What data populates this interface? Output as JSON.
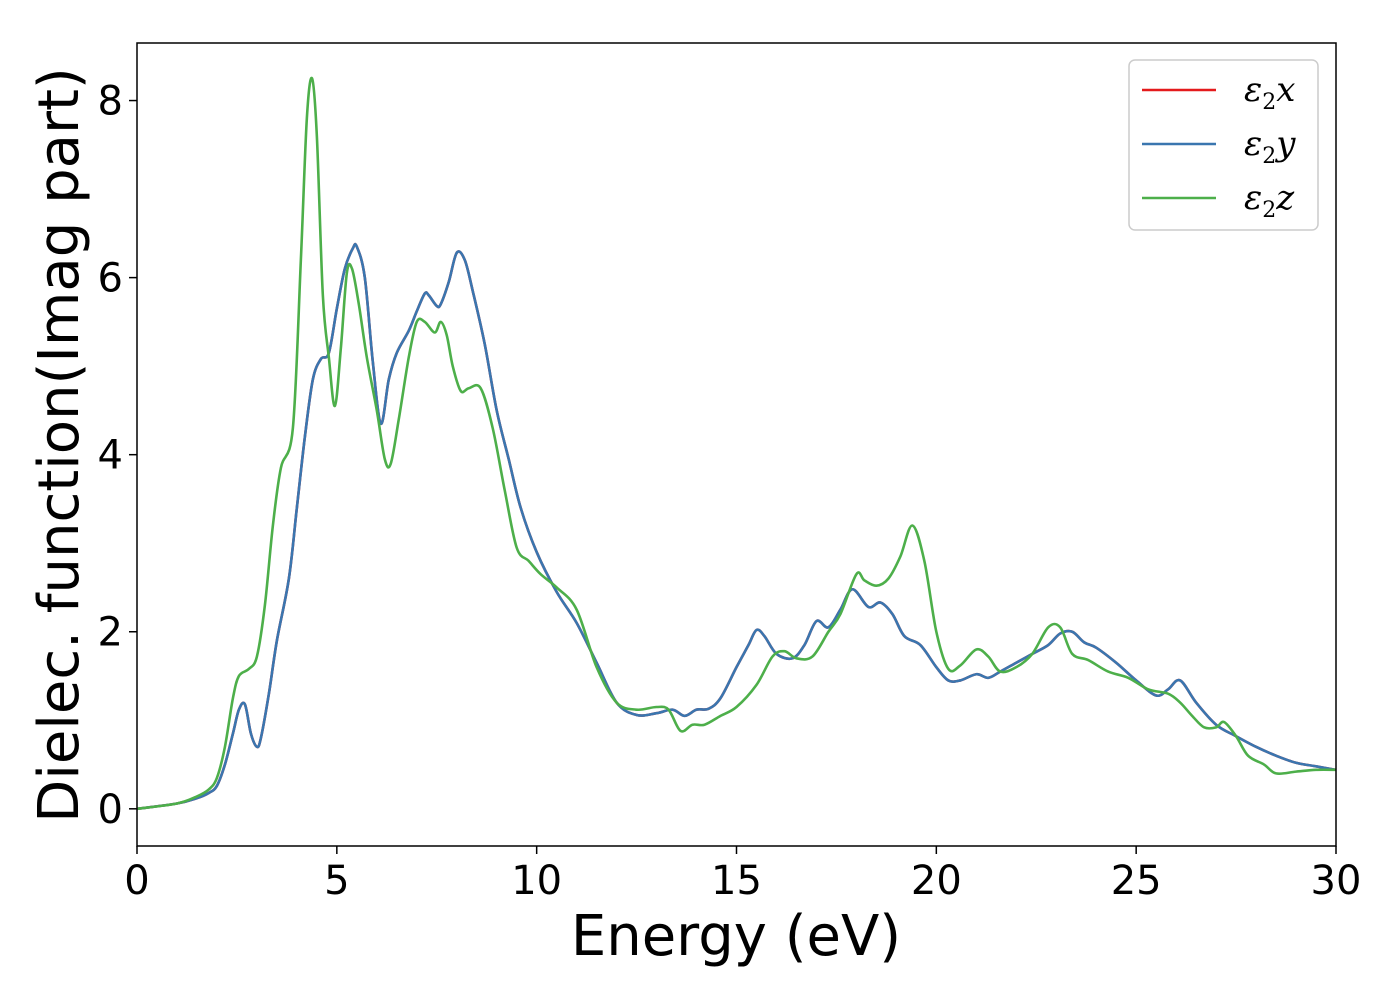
{
  "chart_data": {
    "type": "line",
    "xlabel": "Energy (eV)",
    "ylabel": "Dielec. function(Imag part)",
    "xlim": [
      0,
      30
    ],
    "ylim": [
      -0.42,
      8.65
    ],
    "xticks": [
      0,
      5,
      10,
      15,
      20,
      25,
      30
    ],
    "yticks": [
      0,
      2,
      4,
      6,
      8
    ],
    "grid": false,
    "legend_position": "top-right",
    "series": [
      {
        "name": "ε2x",
        "legend_base": "ε",
        "legend_sub": "2",
        "legend_var": "x",
        "color": "#e41a1c",
        "x": [
          0,
          1.0,
          1.5,
          1.8,
          2.0,
          2.2,
          2.4,
          2.55,
          2.7,
          2.85,
          3.0,
          3.1,
          3.3,
          3.5,
          3.8,
          4.0,
          4.2,
          4.4,
          4.6,
          4.8,
          5.0,
          5.2,
          5.4,
          5.5,
          5.7,
          5.9,
          6.1,
          6.3,
          6.5,
          6.8,
          7.0,
          7.2,
          7.3,
          7.5,
          7.6,
          7.8,
          8.0,
          8.2,
          8.4,
          8.7,
          9.0,
          9.3,
          9.6,
          10.0,
          10.5,
          11.0,
          11.5,
          12.0,
          12.5,
          13.0,
          13.4,
          13.7,
          14.0,
          14.3,
          14.6,
          15.0,
          15.3,
          15.5,
          15.7,
          16.0,
          16.4,
          16.7,
          17.0,
          17.3,
          17.6,
          17.9,
          18.3,
          18.6,
          18.9,
          19.2,
          19.6,
          20.0,
          20.3,
          20.6,
          21.0,
          21.3,
          21.6,
          22.0,
          22.4,
          22.8,
          23.1,
          23.4,
          23.7,
          24.0,
          24.5,
          25.0,
          25.5,
          25.8,
          26.1,
          26.5,
          27.0,
          27.5,
          28.0,
          28.5,
          29.0,
          29.5,
          30.0
        ],
        "y": [
          0,
          0.06,
          0.12,
          0.18,
          0.26,
          0.5,
          0.85,
          1.12,
          1.18,
          0.85,
          0.7,
          0.8,
          1.3,
          1.9,
          2.6,
          3.4,
          4.2,
          4.85,
          5.08,
          5.15,
          5.65,
          6.1,
          6.33,
          6.35,
          6.0,
          5.05,
          4.35,
          4.85,
          5.15,
          5.4,
          5.62,
          5.82,
          5.8,
          5.68,
          5.7,
          5.95,
          6.28,
          6.2,
          5.85,
          5.25,
          4.5,
          3.95,
          3.4,
          2.9,
          2.45,
          2.1,
          1.65,
          1.2,
          1.06,
          1.08,
          1.12,
          1.05,
          1.12,
          1.13,
          1.25,
          1.6,
          1.85,
          2.02,
          1.95,
          1.75,
          1.7,
          1.85,
          2.12,
          2.05,
          2.25,
          2.48,
          2.28,
          2.33,
          2.2,
          1.95,
          1.85,
          1.6,
          1.45,
          1.45,
          1.52,
          1.48,
          1.55,
          1.65,
          1.75,
          1.85,
          1.98,
          2.0,
          1.88,
          1.82,
          1.65,
          1.45,
          1.28,
          1.35,
          1.45,
          1.2,
          0.95,
          0.82,
          0.7,
          0.6,
          0.52,
          0.48,
          0.44
        ]
      },
      {
        "name": "ε2y",
        "legend_base": "ε",
        "legend_sub": "2",
        "legend_var": "y",
        "color": "#3a76af",
        "x": [
          0,
          1.0,
          1.5,
          1.8,
          2.0,
          2.2,
          2.4,
          2.55,
          2.7,
          2.85,
          3.0,
          3.1,
          3.3,
          3.5,
          3.8,
          4.0,
          4.2,
          4.4,
          4.6,
          4.8,
          5.0,
          5.2,
          5.4,
          5.5,
          5.7,
          5.9,
          6.1,
          6.3,
          6.5,
          6.8,
          7.0,
          7.2,
          7.3,
          7.5,
          7.6,
          7.8,
          8.0,
          8.2,
          8.4,
          8.7,
          9.0,
          9.3,
          9.6,
          10.0,
          10.5,
          11.0,
          11.5,
          12.0,
          12.5,
          13.0,
          13.4,
          13.7,
          14.0,
          14.3,
          14.6,
          15.0,
          15.3,
          15.5,
          15.7,
          16.0,
          16.4,
          16.7,
          17.0,
          17.3,
          17.6,
          17.9,
          18.3,
          18.6,
          18.9,
          19.2,
          19.6,
          20.0,
          20.3,
          20.6,
          21.0,
          21.3,
          21.6,
          22.0,
          22.4,
          22.8,
          23.1,
          23.4,
          23.7,
          24.0,
          24.5,
          25.0,
          25.5,
          25.8,
          26.1,
          26.5,
          27.0,
          27.5,
          28.0,
          28.5,
          29.0,
          29.5,
          30.0
        ],
        "y": [
          0,
          0.06,
          0.12,
          0.18,
          0.26,
          0.5,
          0.85,
          1.12,
          1.18,
          0.85,
          0.7,
          0.8,
          1.3,
          1.9,
          2.6,
          3.4,
          4.2,
          4.85,
          5.08,
          5.15,
          5.65,
          6.1,
          6.33,
          6.35,
          6.0,
          5.05,
          4.35,
          4.85,
          5.15,
          5.4,
          5.62,
          5.82,
          5.8,
          5.68,
          5.7,
          5.95,
          6.28,
          6.2,
          5.85,
          5.25,
          4.5,
          3.95,
          3.4,
          2.9,
          2.45,
          2.1,
          1.65,
          1.2,
          1.06,
          1.08,
          1.12,
          1.05,
          1.12,
          1.13,
          1.25,
          1.6,
          1.85,
          2.02,
          1.95,
          1.75,
          1.7,
          1.85,
          2.12,
          2.05,
          2.25,
          2.48,
          2.28,
          2.33,
          2.2,
          1.95,
          1.85,
          1.6,
          1.45,
          1.45,
          1.52,
          1.48,
          1.55,
          1.65,
          1.75,
          1.85,
          1.98,
          2.0,
          1.88,
          1.82,
          1.65,
          1.45,
          1.28,
          1.35,
          1.45,
          1.2,
          0.95,
          0.82,
          0.7,
          0.6,
          0.52,
          0.48,
          0.44
        ]
      },
      {
        "name": "ε2z",
        "legend_base": "ε",
        "legend_sub": "2",
        "legend_var": "z",
        "color": "#4daf4a",
        "x": [
          0,
          1.0,
          1.5,
          1.8,
          2.0,
          2.2,
          2.4,
          2.55,
          2.8,
          3.0,
          3.2,
          3.4,
          3.6,
          3.9,
          4.1,
          4.25,
          4.38,
          4.5,
          4.65,
          4.8,
          4.95,
          5.1,
          5.25,
          5.38,
          5.55,
          5.75,
          6.0,
          6.2,
          6.35,
          6.55,
          6.8,
          7.0,
          7.2,
          7.45,
          7.6,
          7.75,
          7.9,
          8.1,
          8.3,
          8.6,
          8.9,
          9.2,
          9.5,
          9.8,
          10.1,
          10.5,
          11.0,
          11.5,
          12.0,
          12.5,
          13.0,
          13.3,
          13.6,
          13.9,
          14.2,
          14.6,
          15.0,
          15.5,
          15.9,
          16.2,
          16.5,
          16.9,
          17.3,
          17.6,
          18.0,
          18.2,
          18.5,
          18.8,
          19.1,
          19.4,
          19.7,
          20.0,
          20.3,
          20.6,
          21.0,
          21.3,
          21.6,
          22.0,
          22.4,
          22.8,
          23.1,
          23.4,
          23.8,
          24.3,
          24.8,
          25.3,
          25.8,
          26.1,
          26.4,
          26.7,
          27.0,
          27.2,
          27.5,
          27.8,
          28.2,
          28.5,
          29.0,
          29.5,
          30.0
        ],
        "y": [
          0,
          0.06,
          0.14,
          0.22,
          0.35,
          0.7,
          1.25,
          1.5,
          1.58,
          1.72,
          2.3,
          3.2,
          3.85,
          4.3,
          6.2,
          7.8,
          8.25,
          7.6,
          5.8,
          5.1,
          4.55,
          5.2,
          6.05,
          6.1,
          5.7,
          5.1,
          4.5,
          3.95,
          3.9,
          4.4,
          5.1,
          5.5,
          5.5,
          5.38,
          5.5,
          5.35,
          5.0,
          4.72,
          4.75,
          4.75,
          4.3,
          3.6,
          2.95,
          2.8,
          2.65,
          2.5,
          2.25,
          1.6,
          1.2,
          1.12,
          1.15,
          1.12,
          0.88,
          0.95,
          0.95,
          1.05,
          1.15,
          1.4,
          1.72,
          1.78,
          1.7,
          1.72,
          2.0,
          2.2,
          2.65,
          2.58,
          2.52,
          2.6,
          2.85,
          3.2,
          2.8,
          2.0,
          1.58,
          1.62,
          1.8,
          1.72,
          1.55,
          1.6,
          1.75,
          2.05,
          2.05,
          1.75,
          1.68,
          1.55,
          1.48,
          1.35,
          1.3,
          1.2,
          1.05,
          0.92,
          0.92,
          0.98,
          0.82,
          0.6,
          0.5,
          0.4,
          0.42,
          0.44,
          0.44
        ]
      }
    ]
  }
}
